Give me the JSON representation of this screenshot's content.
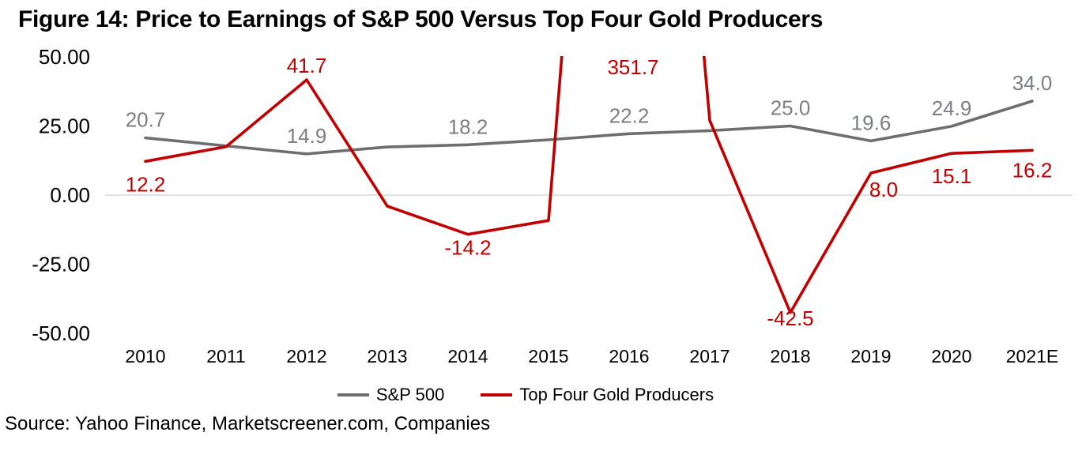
{
  "title": "Figure 14: Price to Earnings of S&P 500 Versus Top Four Gold Producers",
  "source_note": "Source: Yahoo Finance, Marketscreener.com, Companies",
  "legend": {
    "items": [
      {
        "label": "S&P 500",
        "color": "#6E6E6E"
      },
      {
        "label": "Top Four Gold Producers",
        "color": "#C00000"
      }
    ]
  },
  "colors": {
    "sp500_line": "#6E6E6E",
    "gold_line": "#C00000",
    "sp500_label": "#7B7E83",
    "gold_label": "#C00000",
    "zero_gridline": "#D9D9D9",
    "axis_text": "#000000",
    "background": "#FFFFFF"
  },
  "chart_data": {
    "type": "line",
    "title": "Figure 14: Price to Earnings of S&P 500 Versus Top Four Gold Producers",
    "categories": [
      "2010",
      "2011",
      "2012",
      "2013",
      "2014",
      "2015",
      "2016",
      "2017",
      "2018",
      "2019",
      "2020",
      "2021E"
    ],
    "y_axis": {
      "min": -50,
      "max": 50,
      "tick_interval": 25,
      "tick_values": [
        50,
        25,
        0,
        -25,
        -50
      ],
      "tick_labels": [
        "50.00",
        "25.00",
        "0.00",
        "-25.00",
        "-50.00"
      ]
    },
    "grid": "zero-line-only",
    "legend_position": "bottom",
    "note": "Gold producers 2016 value 351.7 exceeds axis max and is clipped at plot top",
    "series": [
      {
        "name": "S&P 500",
        "color": "#6E6E6E",
        "values": [
          20.7,
          17.8,
          14.9,
          17.4,
          18.2,
          20.0,
          22.2,
          23.3,
          25.0,
          19.6,
          24.9,
          34.0
        ],
        "data_labels": [
          {
            "category": "2010",
            "text": "20.7",
            "pos": "above"
          },
          {
            "category": "2012",
            "text": "14.9",
            "pos": "above"
          },
          {
            "category": "2014",
            "text": "18.2",
            "pos": "above"
          },
          {
            "category": "2016",
            "text": "22.2",
            "pos": "above"
          },
          {
            "category": "2018",
            "text": "25.0",
            "pos": "above"
          },
          {
            "category": "2019",
            "text": "19.6",
            "pos": "above"
          },
          {
            "category": "2020",
            "text": "24.9",
            "pos": "above"
          },
          {
            "category": "2021E",
            "text": "34.0",
            "pos": "above"
          }
        ]
      },
      {
        "name": "Top Four Gold Producers",
        "color": "#C00000",
        "values": [
          12.2,
          17.5,
          41.7,
          -4.0,
          -14.2,
          -9.2,
          351.7,
          27.0,
          -42.5,
          8.0,
          15.1,
          16.2
        ],
        "data_labels": [
          {
            "category": "2010",
            "text": "12.2",
            "pos": "below"
          },
          {
            "category": "2012",
            "text": "41.7",
            "pos": "above",
            "dy": 5
          },
          {
            "category": "2014",
            "text": "-14.2",
            "pos": "below",
            "dy": -12
          },
          {
            "category": "2016",
            "text": "351.7",
            "pos": "top",
            "dx": 5
          },
          {
            "category": "2018",
            "text": "-42.5",
            "pos": "below",
            "dy": -22
          },
          {
            "category": "2019",
            "text": "8.0",
            "pos": "below",
            "dx": 16,
            "dy": -8
          },
          {
            "category": "2020",
            "text": "15.1",
            "pos": "below"
          },
          {
            "category": "2021E",
            "text": "16.2",
            "pos": "below",
            "dy": -4
          }
        ]
      }
    ]
  }
}
